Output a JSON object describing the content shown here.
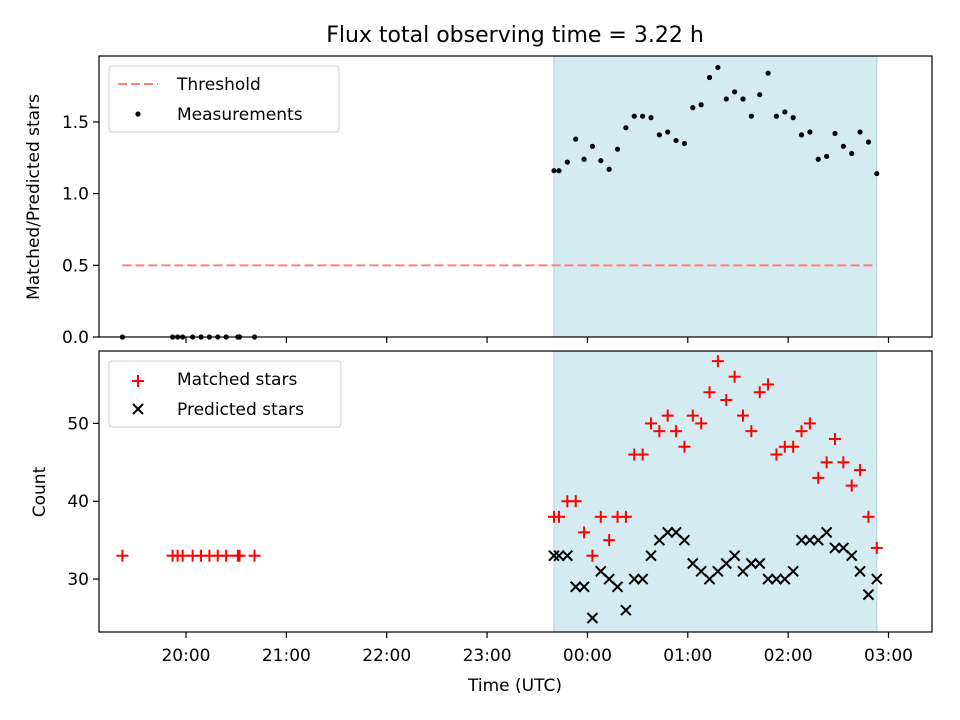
{
  "chart_data": {
    "title": "Flux total observing time = 3.22 h",
    "xlabel": "Time (UTC)",
    "x_ticks": [
      "20:00",
      "21:00",
      "22:00",
      "23:00",
      "00:00",
      "01:00",
      "02:00",
      "03:00"
    ],
    "x_tick_hours": [
      20,
      21,
      22,
      23,
      24,
      25,
      26,
      27
    ],
    "xlim": [
      "19:08",
      "03:26"
    ],
    "shaded_interval": [
      "23:40",
      "02:53"
    ],
    "shaded_color": "#d4ebf1",
    "panels": [
      {
        "type": "scatter",
        "ylabel": "Matched/Predicted stars",
        "ylim": [
          0,
          1.96
        ],
        "yticks": [
          "0.0",
          "0.5",
          "1.0",
          "1.5"
        ],
        "legend_position": "top-left",
        "threshold": {
          "name": "Threshold",
          "value": 0.5,
          "start": "19:22",
          "end": "02:53",
          "color": "#ff7f7f"
        },
        "series": [
          {
            "name": "Measurements",
            "color": "#000000",
            "points": [
              [
                "19:22",
                0
              ],
              [
                "19:52",
                0
              ],
              [
                "19:55",
                0
              ],
              [
                "19:58",
                0
              ],
              [
                "20:04",
                0
              ],
              [
                "20:09",
                0
              ],
              [
                "20:14",
                0
              ],
              [
                "20:19",
                0
              ],
              [
                "20:24",
                0
              ],
              [
                "20:31",
                0
              ],
              [
                "20:32",
                0
              ],
              [
                "20:41",
                0
              ],
              [
                "23:40",
                1.16
              ],
              [
                "23:43",
                1.16
              ],
              [
                "23:48",
                1.22
              ],
              [
                "23:53",
                1.38
              ],
              [
                "23:58",
                1.24
              ],
              [
                "00:03",
                1.33
              ],
              [
                "00:08",
                1.23
              ],
              [
                "00:13",
                1.17
              ],
              [
                "00:18",
                1.31
              ],
              [
                "00:23",
                1.46
              ],
              [
                "00:28",
                1.54
              ],
              [
                "00:33",
                1.54
              ],
              [
                "00:38",
                1.53
              ],
              [
                "00:43",
                1.41
              ],
              [
                "00:48",
                1.43
              ],
              [
                "00:53",
                1.37
              ],
              [
                "00:58",
                1.35
              ],
              [
                "01:03",
                1.6
              ],
              [
                "01:08",
                1.62
              ],
              [
                "01:13",
                1.81
              ],
              [
                "01:18",
                1.88
              ],
              [
                "01:23",
                1.66
              ],
              [
                "01:28",
                1.71
              ],
              [
                "01:33",
                1.66
              ],
              [
                "01:38",
                1.54
              ],
              [
                "01:43",
                1.69
              ],
              [
                "01:48",
                1.84
              ],
              [
                "01:53",
                1.54
              ],
              [
                "01:58",
                1.57
              ],
              [
                "02:03",
                1.53
              ],
              [
                "02:08",
                1.41
              ],
              [
                "02:13",
                1.43
              ],
              [
                "02:18",
                1.24
              ],
              [
                "02:23",
                1.26
              ],
              [
                "02:28",
                1.42
              ],
              [
                "02:33",
                1.33
              ],
              [
                "02:38",
                1.28
              ],
              [
                "02:43",
                1.43
              ],
              [
                "02:48",
                1.36
              ],
              [
                "02:53",
                1.14
              ]
            ]
          }
        ]
      },
      {
        "type": "scatter",
        "ylabel": "Count",
        "ylim": [
          23.2,
          59.3
        ],
        "yticks": [
          "30",
          "40",
          "50"
        ],
        "legend_position": "top-left",
        "series": [
          {
            "name": "Matched stars",
            "marker": "plus",
            "color": "#ff0000",
            "points": [
              [
                "19:22",
                33
              ],
              [
                "19:52",
                33
              ],
              [
                "19:55",
                33
              ],
              [
                "19:58",
                33
              ],
              [
                "20:04",
                33
              ],
              [
                "20:09",
                33
              ],
              [
                "20:14",
                33
              ],
              [
                "20:19",
                33
              ],
              [
                "20:24",
                33
              ],
              [
                "20:31",
                33
              ],
              [
                "20:32",
                33
              ],
              [
                "20:41",
                33
              ],
              [
                "23:40",
                38
              ],
              [
                "23:43",
                38
              ],
              [
                "23:48",
                40
              ],
              [
                "23:53",
                40
              ],
              [
                "23:58",
                36
              ],
              [
                "00:03",
                33
              ],
              [
                "00:08",
                38
              ],
              [
                "00:13",
                35
              ],
              [
                "00:18",
                38
              ],
              [
                "00:23",
                38
              ],
              [
                "00:28",
                46
              ],
              [
                "00:33",
                46
              ],
              [
                "00:38",
                50
              ],
              [
                "00:43",
                49
              ],
              [
                "00:48",
                51
              ],
              [
                "00:53",
                49
              ],
              [
                "00:58",
                47
              ],
              [
                "01:03",
                51
              ],
              [
                "01:08",
                50
              ],
              [
                "01:13",
                54
              ],
              [
                "01:18",
                58
              ],
              [
                "01:23",
                53
              ],
              [
                "01:28",
                56
              ],
              [
                "01:33",
                51
              ],
              [
                "01:38",
                49
              ],
              [
                "01:43",
                54
              ],
              [
                "01:48",
                55
              ],
              [
                "01:53",
                46
              ],
              [
                "01:58",
                47
              ],
              [
                "02:03",
                47
              ],
              [
                "02:08",
                49
              ],
              [
                "02:13",
                50
              ],
              [
                "02:18",
                43
              ],
              [
                "02:23",
                45
              ],
              [
                "02:28",
                48
              ],
              [
                "02:33",
                45
              ],
              [
                "02:38",
                42
              ],
              [
                "02:43",
                44
              ],
              [
                "02:48",
                38
              ],
              [
                "02:53",
                34
              ]
            ]
          },
          {
            "name": "Predicted stars",
            "marker": "x",
            "color": "#000000",
            "points": [
              [
                "23:40",
                33
              ],
              [
                "23:43",
                33
              ],
              [
                "23:48",
                33
              ],
              [
                "23:53",
                29
              ],
              [
                "23:58",
                29
              ],
              [
                "00:03",
                25
              ],
              [
                "00:08",
                31
              ],
              [
                "00:13",
                30
              ],
              [
                "00:18",
                29
              ],
              [
                "00:23",
                26
              ],
              [
                "00:28",
                30
              ],
              [
                "00:33",
                30
              ],
              [
                "00:38",
                33
              ],
              [
                "00:43",
                35
              ],
              [
                "00:48",
                36
              ],
              [
                "00:53",
                36
              ],
              [
                "00:58",
                35
              ],
              [
                "01:03",
                32
              ],
              [
                "01:08",
                31
              ],
              [
                "01:13",
                30
              ],
              [
                "01:18",
                31
              ],
              [
                "01:23",
                32
              ],
              [
                "01:28",
                33
              ],
              [
                "01:33",
                31
              ],
              [
                "01:38",
                32
              ],
              [
                "01:43",
                32
              ],
              [
                "01:48",
                30
              ],
              [
                "01:53",
                30
              ],
              [
                "01:58",
                30
              ],
              [
                "02:03",
                31
              ],
              [
                "02:08",
                35
              ],
              [
                "02:13",
                35
              ],
              [
                "02:18",
                35
              ],
              [
                "02:23",
                36
              ],
              [
                "02:28",
                34
              ],
              [
                "02:33",
                34
              ],
              [
                "02:38",
                33
              ],
              [
                "02:43",
                31
              ],
              [
                "02:48",
                28
              ],
              [
                "02:53",
                30
              ]
            ]
          }
        ]
      }
    ]
  }
}
